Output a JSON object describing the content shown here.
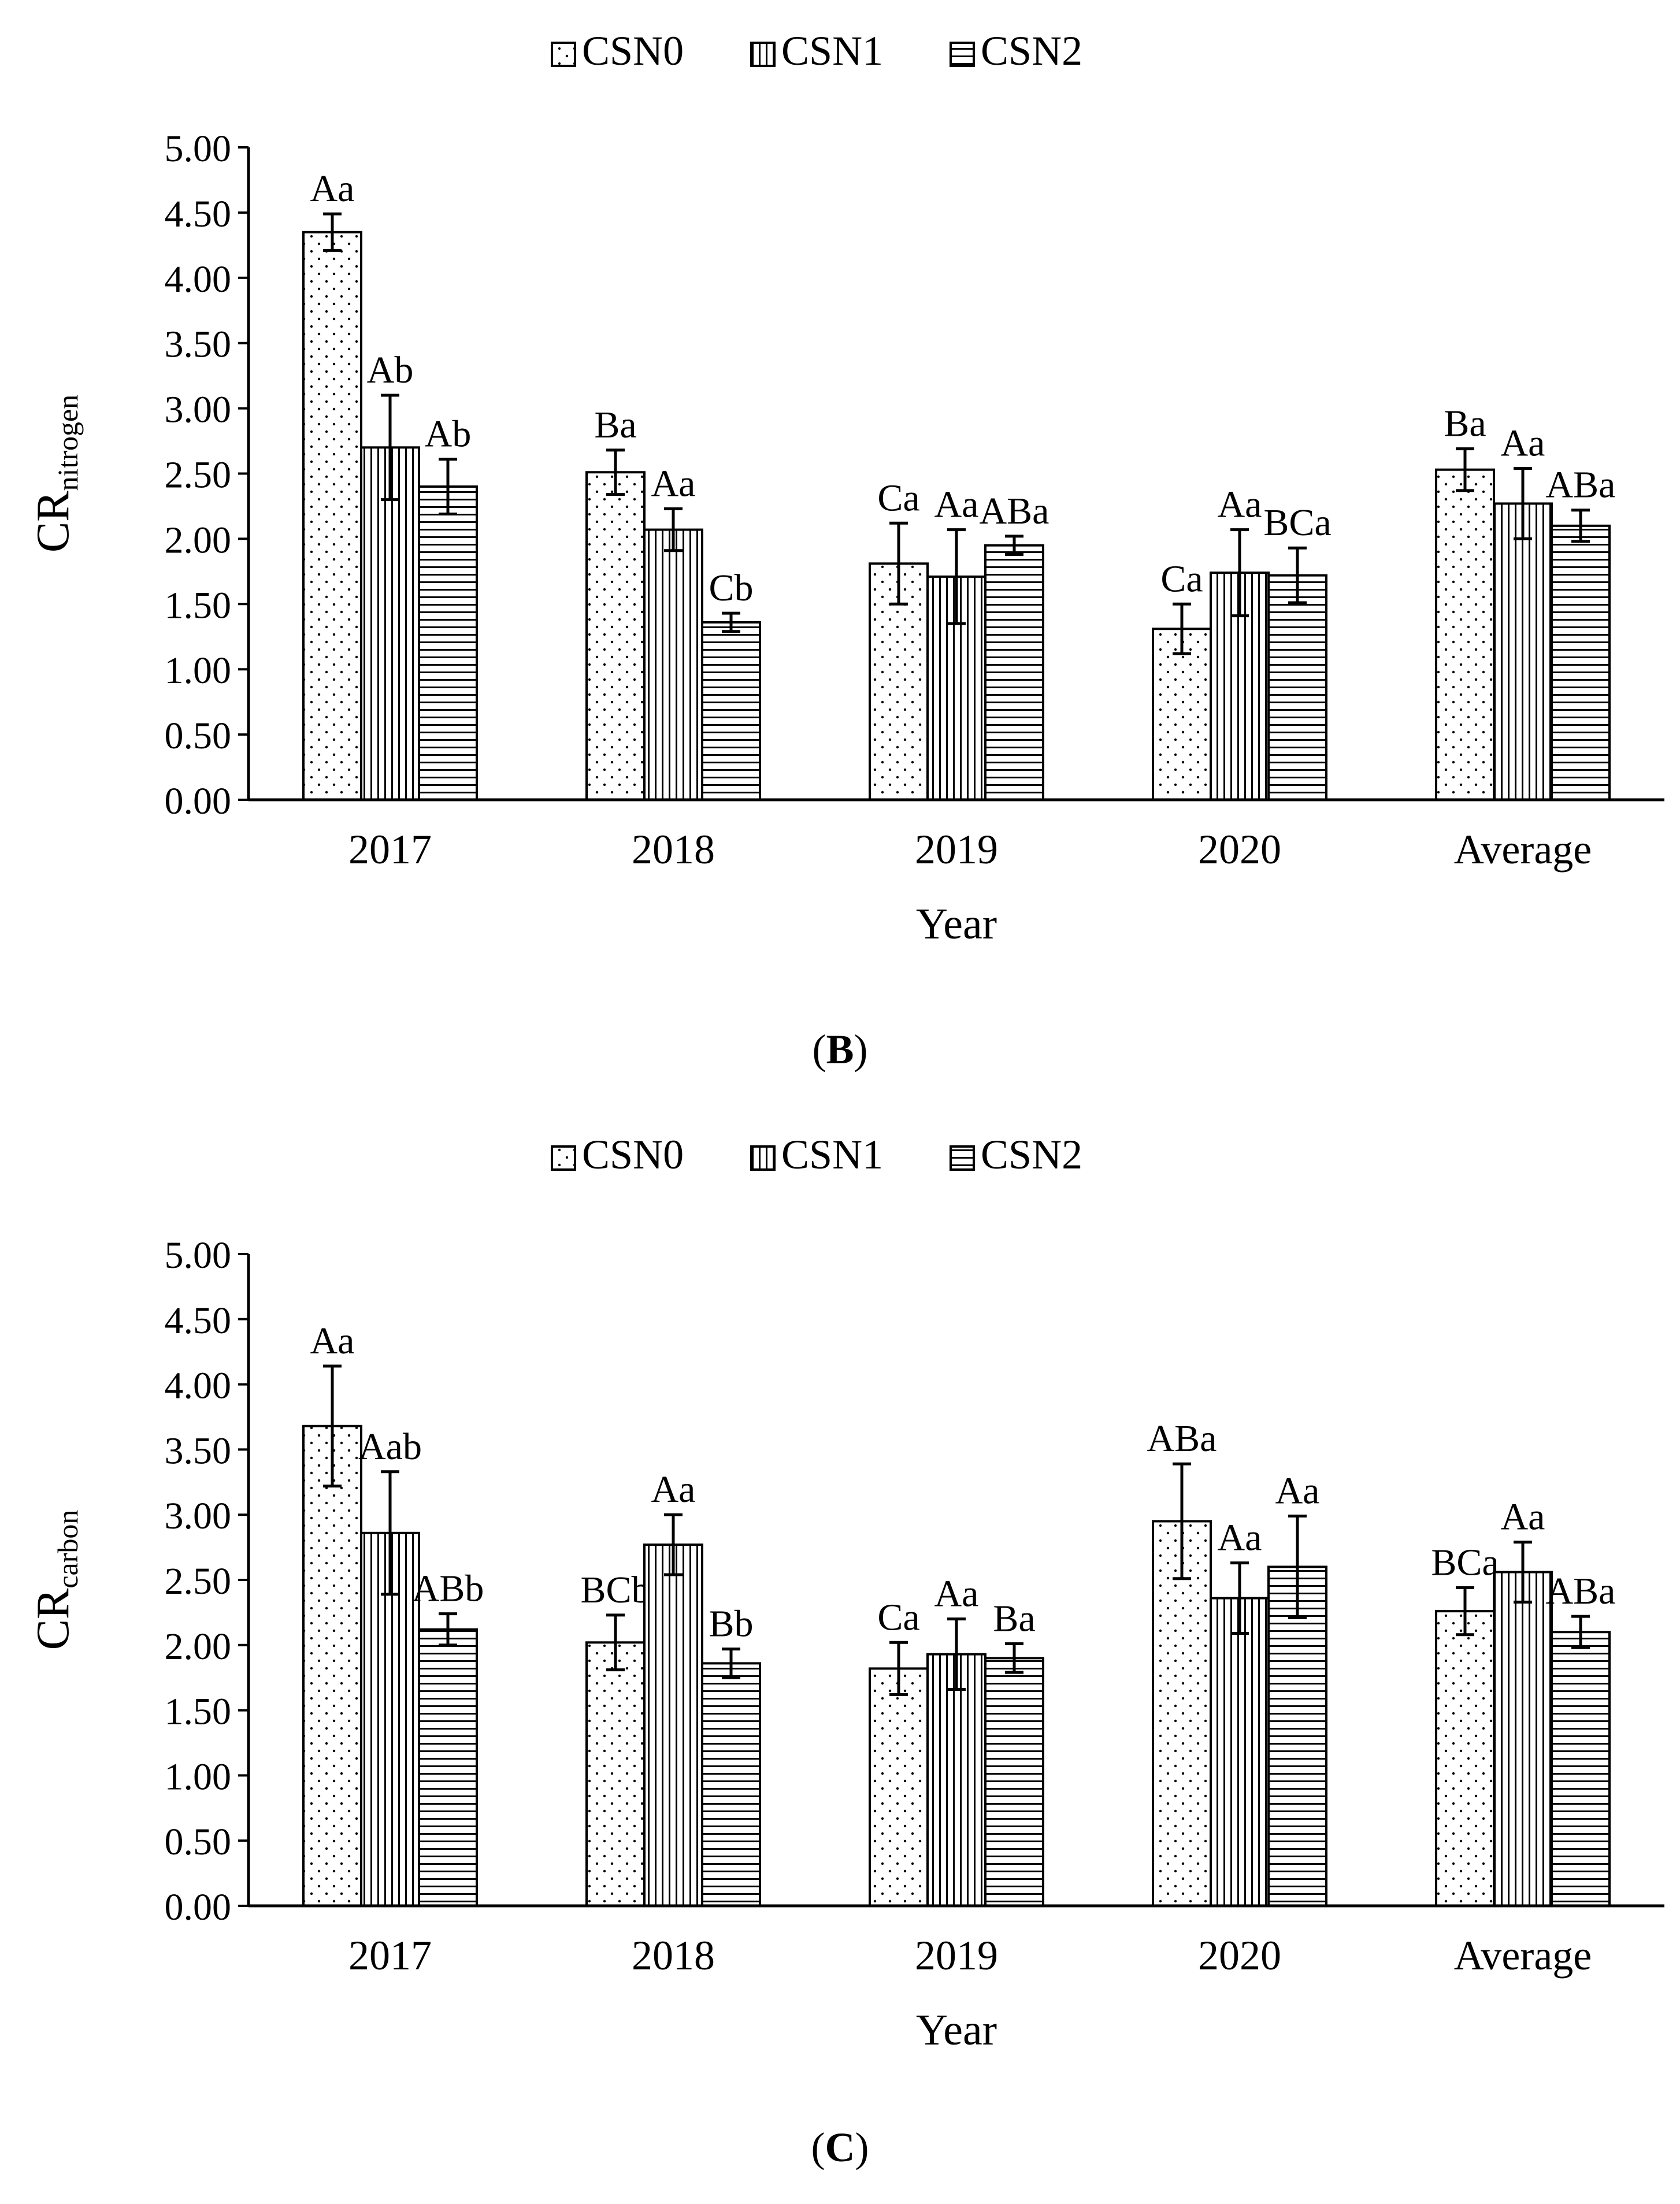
{
  "panel_labels": {
    "b": "B",
    "c": "C"
  },
  "colors": {
    "ink": "#000000",
    "fill": "#ffffff"
  },
  "chart_data": [
    {
      "id": "B",
      "type": "bar",
      "title": "",
      "legend": [
        "CSN0",
        "CSN1",
        "CSN2"
      ],
      "legend_position": "top-center",
      "ylabel_main": "CR",
      "ylabel_sub": "nitrogen",
      "xlabel": "Year",
      "categories": [
        "2017",
        "2018",
        "2019",
        "2020",
        "Average"
      ],
      "ylim": [
        0,
        5
      ],
      "yticks": [
        "0.00",
        "0.50",
        "1.00",
        "1.50",
        "2.00",
        "2.50",
        "3.00",
        "3.50",
        "4.00",
        "4.50",
        "5.00"
      ],
      "series": [
        {
          "name": "CSN0",
          "pattern": "dots",
          "values": [
            4.35,
            2.51,
            1.81,
            1.31,
            2.53
          ],
          "errors": [
            0.14,
            0.17,
            0.31,
            0.19,
            0.16
          ],
          "labels": [
            "Aa",
            "Ba",
            "Ca",
            "Ca",
            "Ba"
          ]
        },
        {
          "name": "CSN1",
          "pattern": "vertical",
          "values": [
            2.7,
            2.07,
            1.71,
            1.74,
            2.27
          ],
          "errors": [
            0.4,
            0.16,
            0.36,
            0.33,
            0.27
          ],
          "labels": [
            "Ab",
            "Aa",
            "Aa",
            "Aa",
            "Aa"
          ]
        },
        {
          "name": "CSN2",
          "pattern": "horizontal",
          "values": [
            2.4,
            1.36,
            1.95,
            1.72,
            2.1
          ],
          "errors": [
            0.21,
            0.07,
            0.07,
            0.21,
            0.12
          ],
          "labels": [
            "Ab",
            "Cb",
            "ABa",
            "BCa",
            "ABa"
          ]
        }
      ]
    },
    {
      "id": "C",
      "type": "bar",
      "title": "",
      "legend": [
        "CSN0",
        "CSN1",
        "CSN2"
      ],
      "legend_position": "top-center",
      "ylabel_main": "CR",
      "ylabel_sub": "carbon",
      "xlabel": "Year",
      "categories": [
        "2017",
        "2018",
        "2019",
        "2020",
        "Average"
      ],
      "ylim": [
        0,
        5
      ],
      "yticks": [
        "0.00",
        "0.50",
        "1.00",
        "1.50",
        "2.00",
        "2.50",
        "3.00",
        "3.50",
        "4.00",
        "4.50",
        "5.00"
      ],
      "series": [
        {
          "name": "CSN0",
          "pattern": "dots",
          "values": [
            3.68,
            2.02,
            1.82,
            2.95,
            2.26
          ],
          "errors": [
            0.46,
            0.21,
            0.2,
            0.44,
            0.18
          ],
          "labels": [
            "Aa",
            "BCb",
            "Ca",
            "ABa",
            "BCa"
          ]
        },
        {
          "name": "CSN1",
          "pattern": "vertical",
          "values": [
            2.86,
            2.77,
            1.93,
            2.36,
            2.56
          ],
          "errors": [
            0.47,
            0.23,
            0.27,
            0.27,
            0.23
          ],
          "labels": [
            "Aab",
            "Aa",
            "Aa",
            "Aa",
            "Aa"
          ]
        },
        {
          "name": "CSN2",
          "pattern": "horizontal",
          "values": [
            2.12,
            1.86,
            1.9,
            2.6,
            2.1
          ],
          "errors": [
            0.12,
            0.11,
            0.11,
            0.39,
            0.12
          ],
          "labels": [
            "ABb",
            "Bb",
            "Ba",
            "Aa",
            "ABa"
          ]
        }
      ]
    }
  ]
}
